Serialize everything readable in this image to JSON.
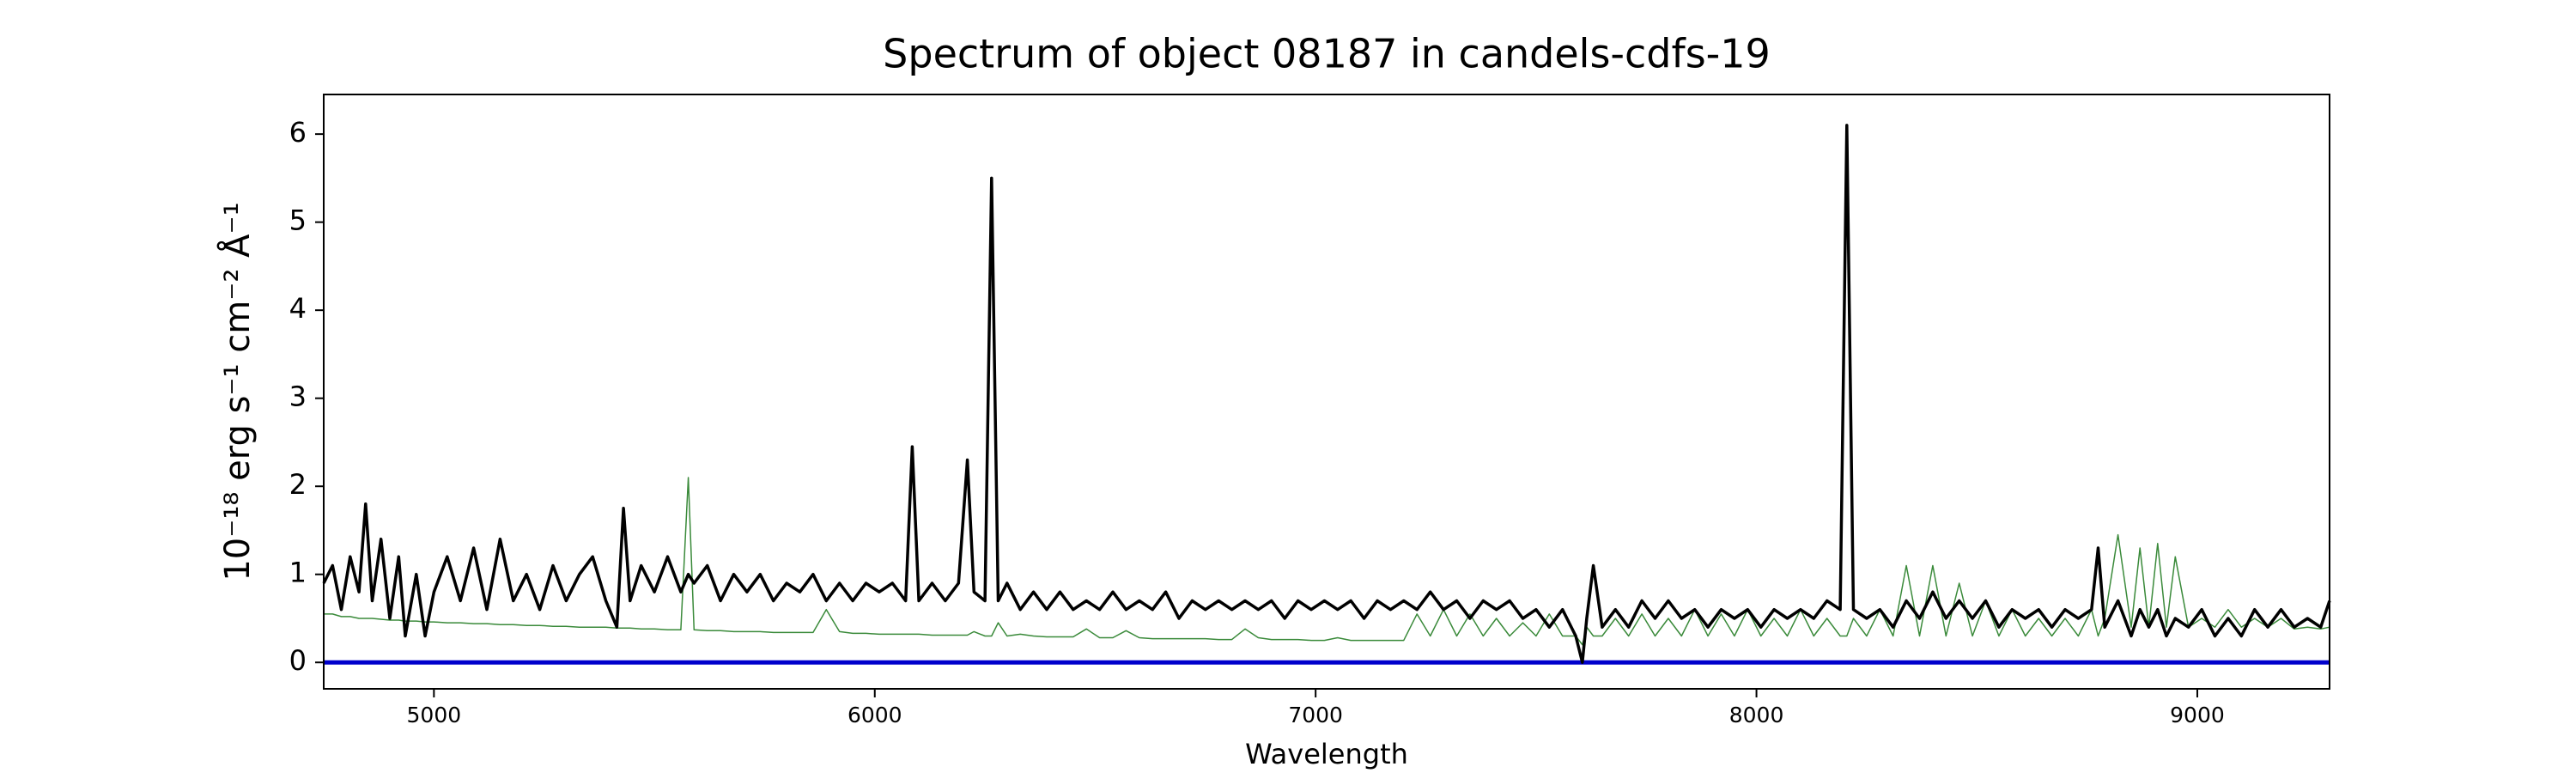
{
  "chart_data": {
    "type": "line",
    "title": "Spectrum of object 08187 in candels-cdfs-19",
    "x_label": "Wavelength",
    "y_label": "10⁻¹⁸ erg s⁻¹ cm⁻² Å⁻¹",
    "xlim": [
      4750,
      9300
    ],
    "ylim": [
      -0.3,
      6.45
    ],
    "xticks": [
      5000,
      6000,
      7000,
      8000,
      9000
    ],
    "yticks": [
      0,
      1,
      2,
      3,
      4,
      5,
      6
    ],
    "grid": false,
    "legend": false,
    "hlines": [
      {
        "y": 0,
        "color": "#0000cc"
      }
    ],
    "x": [
      4750,
      4770,
      4790,
      4810,
      4830,
      4845,
      4860,
      4880,
      4900,
      4920,
      4935,
      4960,
      4980,
      5000,
      5030,
      5060,
      5090,
      5120,
      5150,
      5180,
      5210,
      5240,
      5270,
      5300,
      5330,
      5360,
      5390,
      5415,
      5430,
      5445,
      5470,
      5500,
      5530,
      5560,
      5577,
      5590,
      5620,
      5650,
      5680,
      5710,
      5740,
      5770,
      5800,
      5830,
      5860,
      5890,
      5920,
      5950,
      5980,
      6010,
      6040,
      6070,
      6085,
      6100,
      6130,
      6160,
      6190,
      6210,
      6225,
      6250,
      6265,
      6280,
      6300,
      6330,
      6360,
      6390,
      6420,
      6450,
      6480,
      6510,
      6540,
      6570,
      6600,
      6630,
      6660,
      6690,
      6720,
      6750,
      6780,
      6810,
      6840,
      6870,
      6900,
      6930,
      6960,
      6990,
      7020,
      7050,
      7080,
      7110,
      7140,
      7170,
      7200,
      7230,
      7260,
      7290,
      7320,
      7350,
      7380,
      7410,
      7440,
      7470,
      7500,
      7530,
      7560,
      7590,
      7605,
      7615,
      7630,
      7650,
      7680,
      7710,
      7740,
      7770,
      7800,
      7830,
      7860,
      7890,
      7920,
      7950,
      7980,
      8010,
      8040,
      8070,
      8100,
      8130,
      8160,
      8190,
      8205,
      8220,
      8250,
      8280,
      8310,
      8340,
      8370,
      8400,
      8430,
      8460,
      8490,
      8520,
      8550,
      8580,
      8610,
      8640,
      8670,
      8700,
      8730,
      8760,
      8775,
      8790,
      8820,
      8850,
      8870,
      8890,
      8910,
      8930,
      8950,
      8980,
      9010,
      9040,
      9070,
      9100,
      9130,
      9160,
      9190,
      9220,
      9250,
      9280,
      9300
    ],
    "series": [
      {
        "color": "#3a8a3a",
        "values": [
          0.55,
          0.55,
          0.52,
          0.52,
          0.5,
          0.5,
          0.5,
          0.49,
          0.48,
          0.48,
          0.47,
          0.47,
          0.46,
          0.46,
          0.45,
          0.45,
          0.44,
          0.44,
          0.43,
          0.43,
          0.42,
          0.42,
          0.41,
          0.41,
          0.4,
          0.4,
          0.4,
          0.39,
          0.39,
          0.39,
          0.38,
          0.38,
          0.37,
          0.37,
          2.1,
          0.37,
          0.36,
          0.36,
          0.35,
          0.35,
          0.35,
          0.34,
          0.34,
          0.34,
          0.34,
          0.6,
          0.35,
          0.33,
          0.33,
          0.32,
          0.32,
          0.32,
          0.32,
          0.32,
          0.31,
          0.31,
          0.31,
          0.31,
          0.35,
          0.3,
          0.3,
          0.45,
          0.3,
          0.32,
          0.3,
          0.29,
          0.29,
          0.29,
          0.38,
          0.28,
          0.28,
          0.36,
          0.28,
          0.27,
          0.27,
          0.27,
          0.27,
          0.27,
          0.26,
          0.26,
          0.38,
          0.28,
          0.26,
          0.26,
          0.26,
          0.25,
          0.25,
          0.28,
          0.25,
          0.25,
          0.25,
          0.25,
          0.25,
          0.55,
          0.3,
          0.6,
          0.3,
          0.55,
          0.3,
          0.5,
          0.3,
          0.45,
          0.3,
          0.55,
          0.3,
          0.3,
          0.2,
          0.4,
          0.3,
          0.3,
          0.5,
          0.3,
          0.55,
          0.3,
          0.5,
          0.3,
          0.6,
          0.3,
          0.55,
          0.3,
          0.6,
          0.3,
          0.5,
          0.3,
          0.6,
          0.3,
          0.5,
          0.3,
          0.3,
          0.5,
          0.3,
          0.6,
          0.3,
          1.1,
          0.3,
          1.1,
          0.3,
          0.9,
          0.3,
          0.7,
          0.3,
          0.6,
          0.3,
          0.5,
          0.3,
          0.5,
          0.3,
          0.6,
          0.3,
          0.5,
          1.45,
          0.4,
          1.3,
          0.4,
          1.35,
          0.4,
          1.2,
          0.4,
          0.5,
          0.4,
          0.6,
          0.4,
          0.5,
          0.4,
          0.5,
          0.38,
          0.4,
          0.38,
          0.4
        ]
      },
      {
        "color": "#000000",
        "values": [
          0.9,
          1.1,
          0.6,
          1.2,
          0.8,
          1.8,
          0.7,
          1.4,
          0.5,
          1.2,
          0.3,
          1.0,
          0.3,
          0.8,
          1.2,
          0.7,
          1.3,
          0.6,
          1.4,
          0.7,
          1.0,
          0.6,
          1.1,
          0.7,
          1.0,
          1.2,
          0.7,
          0.4,
          1.75,
          0.7,
          1.1,
          0.8,
          1.2,
          0.8,
          1.0,
          0.9,
          1.1,
          0.7,
          1.0,
          0.8,
          1.0,
          0.7,
          0.9,
          0.8,
          1.0,
          0.7,
          0.9,
          0.7,
          0.9,
          0.8,
          0.9,
          0.7,
          2.45,
          0.7,
          0.9,
          0.7,
          0.9,
          2.3,
          0.8,
          0.7,
          5.5,
          0.7,
          0.9,
          0.6,
          0.8,
          0.6,
          0.8,
          0.6,
          0.7,
          0.6,
          0.8,
          0.6,
          0.7,
          0.6,
          0.8,
          0.5,
          0.7,
          0.6,
          0.7,
          0.6,
          0.7,
          0.6,
          0.7,
          0.5,
          0.7,
          0.6,
          0.7,
          0.6,
          0.7,
          0.5,
          0.7,
          0.6,
          0.7,
          0.6,
          0.8,
          0.6,
          0.7,
          0.5,
          0.7,
          0.6,
          0.7,
          0.5,
          0.6,
          0.4,
          0.6,
          0.3,
          0.0,
          0.5,
          1.1,
          0.4,
          0.6,
          0.4,
          0.7,
          0.5,
          0.7,
          0.5,
          0.6,
          0.4,
          0.6,
          0.5,
          0.6,
          0.4,
          0.6,
          0.5,
          0.6,
          0.5,
          0.7,
          0.6,
          6.1,
          0.6,
          0.5,
          0.6,
          0.4,
          0.7,
          0.5,
          0.8,
          0.5,
          0.7,
          0.5,
          0.7,
          0.4,
          0.6,
          0.5,
          0.6,
          0.4,
          0.6,
          0.5,
          0.6,
          1.3,
          0.4,
          0.7,
          0.3,
          0.6,
          0.4,
          0.6,
          0.3,
          0.5,
          0.4,
          0.6,
          0.3,
          0.5,
          0.3,
          0.6,
          0.4,
          0.6,
          0.4,
          0.5,
          0.4,
          0.7
        ]
      }
    ]
  }
}
